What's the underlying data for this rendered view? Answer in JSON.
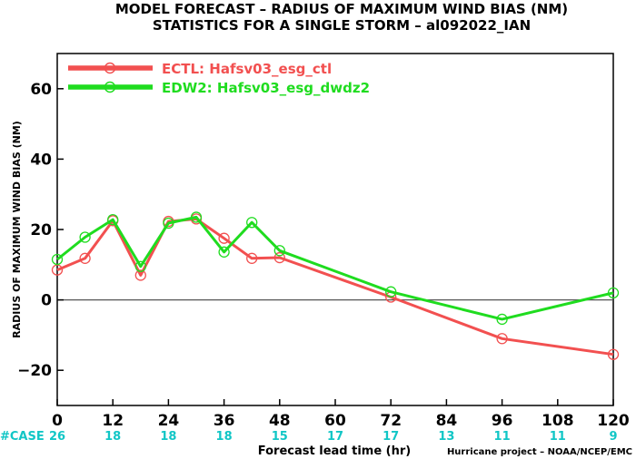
{
  "chart_data": {
    "type": "line",
    "title": "MODEL FORECAST – RADIUS OF MAXIMUM WIND BIAS (NM)",
    "subtitle": "STATISTICS FOR A SINGLE STORM – al092022_IAN",
    "xlabel": "Forecast lead time (hr)",
    "ylabel": "RADIUS OF MAXIMUM WIND BIAS (NM)",
    "credit": "Hurricane project – NOAA/NCEP/EMC",
    "xlim": [
      0,
      120
    ],
    "ylim": [
      -30,
      70
    ],
    "xticks": [
      0,
      12,
      24,
      36,
      48,
      60,
      72,
      84,
      96,
      108,
      120
    ],
    "xtick_labels": [
      "0",
      "12",
      "24",
      "36",
      "48",
      "60",
      "72",
      "84",
      "96",
      "108",
      "120"
    ],
    "yticks": [
      -20,
      0,
      20,
      40,
      60
    ],
    "ytick_labels": [
      "−20",
      "0",
      "20",
      "40",
      "60"
    ],
    "zero_line": true,
    "grid": false,
    "legend_position": "top-left",
    "case_label": "#CASE",
    "case_counts": [
      "26",
      "18",
      "18",
      "18",
      "15",
      "17",
      "17",
      "13",
      "11",
      "11",
      "9"
    ],
    "colors": {
      "ECTL": "#f25050",
      "EDW2": "#1fdc1f",
      "zero_line": "#555555",
      "cases": "#11c6c6"
    },
    "series": [
      {
        "name": "ECTL: Hafsv03_esg_ctl",
        "color": "#f25050",
        "x": [
          0,
          6,
          12,
          18,
          24,
          30,
          36,
          42,
          48,
          72,
          96,
          120
        ],
        "y": [
          8.5,
          11.8,
          22.5,
          7.0,
          22.3,
          23.0,
          17.5,
          11.8,
          12.0,
          0.8,
          -11.0,
          -15.5
        ]
      },
      {
        "name": "EDW2: Hafsv03_esg_dwdz2",
        "color": "#1fdc1f",
        "x": [
          0,
          6,
          12,
          18,
          24,
          30,
          36,
          42,
          48,
          72,
          96,
          120
        ],
        "y": [
          11.5,
          17.8,
          22.8,
          9.5,
          21.8,
          23.5,
          13.6,
          22.0,
          14.0,
          2.3,
          -5.5,
          2.0
        ]
      }
    ]
  }
}
